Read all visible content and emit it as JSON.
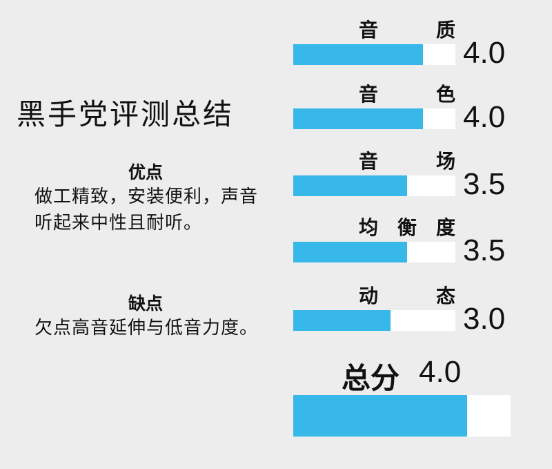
{
  "title": "黑手党评测总结",
  "pros": {
    "heading": "优点",
    "text": "做工精致，安装便利，声音听起来中性且耐听。"
  },
  "cons": {
    "heading": "缺点",
    "text": "欠点高音延伸与低音力度。"
  },
  "chart_data": {
    "type": "bar",
    "orientation": "horizontal",
    "max": 5,
    "categories": [
      "音质",
      "音色",
      "音场",
      "均衡度",
      "动态"
    ],
    "label_chars": [
      [
        "音",
        "质"
      ],
      [
        "音",
        "色"
      ],
      [
        "音",
        "场"
      ],
      [
        "均",
        "衡",
        "度"
      ],
      [
        "动",
        "态"
      ]
    ],
    "values": [
      4.0,
      4.0,
      3.5,
      3.5,
      3.0
    ],
    "value_labels": [
      "4.0",
      "4.0",
      "3.5",
      "3.5",
      "3.0"
    ],
    "total": {
      "label": "总分",
      "value": 4.0,
      "value_label": "4.0"
    },
    "colors": {
      "fill": "#37b8e8",
      "track": "#ffffff",
      "background": "#ededee"
    }
  }
}
